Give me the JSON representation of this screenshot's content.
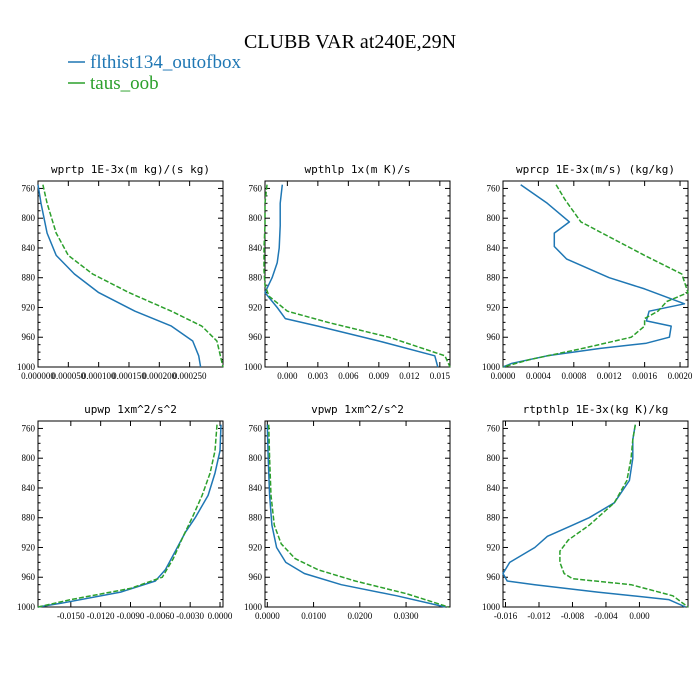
{
  "figure_title": "CLUBB VAR at240E,29N",
  "legend": [
    {
      "label": "flthist134_outofbox",
      "color": "#1f77b4"
    },
    {
      "label": "taus_oob",
      "color": "#2ca02c"
    }
  ],
  "chart_data": [
    {
      "type": "line",
      "title": "wprtp  1E-3x(m kg)/(s kg)",
      "xlim": [
        0,
        0.000305
      ],
      "ylim": [
        1000,
        750
      ],
      "y_inverted": true,
      "xticks": [
        0,
        5e-05,
        0.0001,
        0.00015,
        0.0002,
        0.00025
      ],
      "xtick_labels": [
        "0.000000",
        "0.000050",
        "0.000100",
        "0.000150",
        "0.000200",
        "0.000250"
      ],
      "yticks": [
        760,
        800,
        840,
        880,
        920,
        960,
        1000
      ],
      "series": [
        {
          "name": "flthist134_outofbox",
          "color": "#1f77b4",
          "dash": "solid",
          "x": [
            0.0,
            5e-06,
            1.5e-05,
            3e-05,
            6e-05,
            0.0001,
            0.00016,
            0.00022,
            0.000255,
            0.000265,
            0.000268
          ],
          "y": [
            755,
            780,
            820,
            850,
            875,
            900,
            925,
            945,
            965,
            985,
            1000
          ]
        },
        {
          "name": "taus_oob",
          "color": "#2ca02c",
          "dash": "dashed",
          "x": [
            8e-06,
            1.5e-05,
            3e-05,
            5e-05,
            9e-05,
            0.00015,
            0.00022,
            0.00027,
            0.000295,
            0.000305
          ],
          "y": [
            755,
            780,
            820,
            850,
            875,
            900,
            925,
            945,
            965,
            1000
          ]
        }
      ]
    },
    {
      "type": "line",
      "title": "wpthlp  1x(m K)/s",
      "xlim": [
        -0.0022,
        0.016
      ],
      "ylim": [
        1000,
        750
      ],
      "y_inverted": true,
      "xticks": [
        0,
        0.003,
        0.006,
        0.009,
        0.012,
        0.015
      ],
      "xtick_labels": [
        "0.000",
        "0.003",
        "0.006",
        "0.009",
        "0.012",
        "0.015"
      ],
      "yticks": [
        760,
        800,
        840,
        880,
        920,
        960,
        1000
      ],
      "series": [
        {
          "name": "flthist134_outofbox",
          "color": "#1f77b4",
          "dash": "solid",
          "x": [
            -0.0005,
            -0.0007,
            -0.0007,
            -0.0008,
            -0.001,
            -0.0015,
            -0.0022,
            -0.001,
            -0.0002,
            0.003,
            0.009,
            0.0145,
            0.0148
          ],
          "y": [
            755,
            780,
            810,
            840,
            860,
            880,
            900,
            920,
            935,
            945,
            965,
            985,
            1000
          ]
        },
        {
          "name": "taus_oob",
          "color": "#2ca02c",
          "dash": "dashed",
          "x": [
            -0.002,
            -0.0022,
            -0.0022,
            -0.0023,
            -0.0023,
            -0.0022,
            -0.0018,
            0.0,
            0.004,
            0.01,
            0.0155,
            0.016
          ],
          "y": [
            755,
            780,
            810,
            840,
            870,
            890,
            905,
            925,
            940,
            960,
            985,
            1000
          ]
        }
      ]
    },
    {
      "type": "line",
      "title": "wprcp  1E-3x(m/s) (kg/kg)",
      "xlim": [
        0,
        0.00209
      ],
      "ylim": [
        1000,
        750
      ],
      "y_inverted": true,
      "xticks": [
        0,
        0.0004,
        0.0008,
        0.0012,
        0.0016,
        0.002
      ],
      "xtick_labels": [
        "0.0000",
        "0.0004",
        "0.0008",
        "0.0012",
        "0.0016",
        "0.0020"
      ],
      "yticks": [
        760,
        800,
        840,
        880,
        920,
        960,
        1000
      ],
      "series": [
        {
          "name": "flthist134_outofbox",
          "color": "#1f77b4",
          "dash": "solid",
          "x": [
            0.0002,
            0.0005,
            0.00075,
            0.00058,
            0.00058,
            0.00072,
            0.0012,
            0.0016,
            0.00205,
            0.00165,
            0.00162,
            0.0019,
            0.00188,
            0.00162,
            0.0011,
            0.0005,
            0.0001,
            0.0
          ],
          "y": [
            755,
            780,
            805,
            820,
            838,
            855,
            880,
            895,
            915,
            925,
            938,
            945,
            960,
            968,
            975,
            985,
            995,
            1000
          ]
        },
        {
          "name": "taus_oob",
          "color": "#2ca02c",
          "dash": "dashed",
          "x": [
            0.0006,
            0.0007,
            0.00088,
            0.0012,
            0.0016,
            0.00202,
            0.00209,
            0.00185,
            0.00175,
            0.0016,
            0.0016,
            0.00145,
            0.0009,
            0.0003,
            0.0
          ],
          "y": [
            755,
            775,
            805,
            825,
            850,
            875,
            900,
            912,
            925,
            935,
            945,
            960,
            975,
            990,
            1000
          ]
        }
      ]
    },
    {
      "type": "line",
      "title": "upwp  1xm^2/s^2",
      "xlim": [
        -0.0183,
        0.0003
      ],
      "ylim": [
        1000,
        750
      ],
      "y_inverted": true,
      "xticks": [
        -0.015,
        -0.012,
        -0.009,
        -0.006,
        -0.003,
        0.0
      ],
      "xtick_labels": [
        "-0.0150",
        "-0.0120",
        "-0.0090",
        "-0.0060",
        "-0.0030",
        "0.0000"
      ],
      "yticks": [
        760,
        800,
        840,
        880,
        920,
        960,
        1000
      ],
      "series": [
        {
          "name": "flthist134_outofbox",
          "color": "#1f77b4",
          "dash": "solid",
          "x": [
            0.0001,
            0.0,
            -0.0005,
            -0.0012,
            -0.0025,
            -0.0035,
            -0.0045,
            -0.0055,
            -0.0065,
            -0.01,
            -0.016,
            -0.0183
          ],
          "y": [
            755,
            790,
            820,
            850,
            880,
            900,
            925,
            950,
            965,
            980,
            995,
            1000
          ]
        },
        {
          "name": "taus_oob",
          "color": "#2ca02c",
          "dash": "dashed",
          "x": [
            -0.0003,
            -0.0005,
            -0.001,
            -0.0018,
            -0.0028,
            -0.0037,
            -0.0047,
            -0.0058,
            -0.009,
            -0.015,
            -0.0183
          ],
          "y": [
            755,
            790,
            820,
            850,
            880,
            905,
            935,
            960,
            975,
            990,
            1000
          ]
        }
      ]
    },
    {
      "type": "line",
      "title": "vpwp  1xm^2/s^2",
      "xlim": [
        -0.0005,
        0.0395
      ],
      "ylim": [
        1000,
        750
      ],
      "y_inverted": true,
      "xticks": [
        0,
        0.01,
        0.02,
        0.03
      ],
      "xtick_labels": [
        "0.0000",
        "0.0100",
        "0.0200",
        "0.0300"
      ],
      "yticks": [
        760,
        800,
        840,
        880,
        920,
        960,
        1000
      ],
      "series": [
        {
          "name": "flthist134_outofbox",
          "color": "#1f77b4",
          "dash": "solid",
          "x": [
            0.0,
            0.0002,
            0.0005,
            0.001,
            0.002,
            0.004,
            0.008,
            0.016,
            0.028,
            0.0385
          ],
          "y": [
            755,
            800,
            850,
            890,
            920,
            940,
            955,
            970,
            985,
            1000
          ]
        },
        {
          "name": "taus_oob",
          "color": "#2ca02c",
          "dash": "dashed",
          "x": [
            0.0003,
            0.0005,
            0.0008,
            0.0015,
            0.003,
            0.006,
            0.011,
            0.019,
            0.03,
            0.0392
          ],
          "y": [
            755,
            800,
            850,
            890,
            915,
            935,
            950,
            965,
            982,
            1000
          ]
        }
      ]
    },
    {
      "type": "line",
      "title": "rtpthlp  1E-3x(kg K)/kg",
      "xlim": [
        -0.0163,
        0.0058
      ],
      "ylim": [
        1000,
        750
      ],
      "y_inverted": true,
      "xticks": [
        -0.016,
        -0.012,
        -0.008,
        -0.004,
        0.0
      ],
      "xtick_labels": [
        "-0.016",
        "-0.012",
        "-0.008",
        "-0.004",
        "0.000"
      ],
      "yticks": [
        760,
        800,
        840,
        880,
        920,
        960,
        1000
      ],
      "series": [
        {
          "name": "flthist134_outofbox",
          "color": "#1f77b4",
          "dash": "solid",
          "x": [
            -0.0005,
            -0.0008,
            -0.0008,
            -0.0012,
            -0.003,
            -0.006,
            -0.008,
            -0.011,
            -0.0125,
            -0.0155,
            -0.0163,
            -0.0158,
            -0.0125,
            -0.005,
            0.0035,
            0.0055
          ],
          "y": [
            755,
            775,
            800,
            830,
            860,
            880,
            890,
            905,
            920,
            940,
            955,
            965,
            970,
            980,
            990,
            1000
          ]
        },
        {
          "name": "taus_oob",
          "color": "#2ca02c",
          "dash": "dashed",
          "x": [
            -0.0005,
            -0.0008,
            -0.001,
            -0.0015,
            -0.003,
            -0.006,
            -0.0085,
            -0.0095,
            -0.0095,
            -0.009,
            -0.008,
            -0.001,
            0.004,
            0.0058
          ],
          "y": [
            755,
            775,
            800,
            830,
            860,
            890,
            910,
            925,
            940,
            955,
            962,
            970,
            985,
            1000
          ]
        }
      ]
    }
  ]
}
